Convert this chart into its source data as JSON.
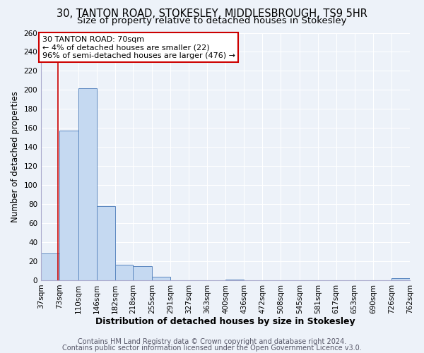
{
  "title1": "30, TANTON ROAD, STOKESLEY, MIDDLESBROUGH, TS9 5HR",
  "title2": "Size of property relative to detached houses in Stokesley",
  "xlabel": "Distribution of detached houses by size in Stokesley",
  "ylabel": "Number of detached properties",
  "bar_edges": [
    37,
    73,
    110,
    146,
    182,
    218,
    255,
    291,
    327,
    363,
    400,
    436,
    472,
    508,
    545,
    581,
    617,
    653,
    690,
    726,
    762
  ],
  "bar_heights": [
    28,
    157,
    202,
    78,
    16,
    15,
    4,
    0,
    0,
    0,
    1,
    0,
    0,
    0,
    0,
    0,
    0,
    0,
    0,
    2
  ],
  "bar_color": "#c5d9f1",
  "bar_edge_color": "#5b87c0",
  "property_line_x": 70,
  "annotation_title": "30 TANTON ROAD: 70sqm",
  "annotation_line1": "← 4% of detached houses are smaller (22)",
  "annotation_line2": "96% of semi-detached houses are larger (476) →",
  "annotation_box_color": "#ffffff",
  "annotation_box_edge_color": "#cc0000",
  "ylim": [
    0,
    260
  ],
  "yticks": [
    0,
    20,
    40,
    60,
    80,
    100,
    120,
    140,
    160,
    180,
    200,
    220,
    240,
    260
  ],
  "footer1": "Contains HM Land Registry data © Crown copyright and database right 2024.",
  "footer2": "Contains public sector information licensed under the Open Government Licence v3.0.",
  "bg_color": "#edf2f9",
  "grid_color": "#ffffff",
  "title1_fontsize": 10.5,
  "title2_fontsize": 9.5,
  "xlabel_fontsize": 9,
  "ylabel_fontsize": 8.5,
  "tick_fontsize": 7.5,
  "annot_fontsize": 8,
  "footer_fontsize": 7
}
